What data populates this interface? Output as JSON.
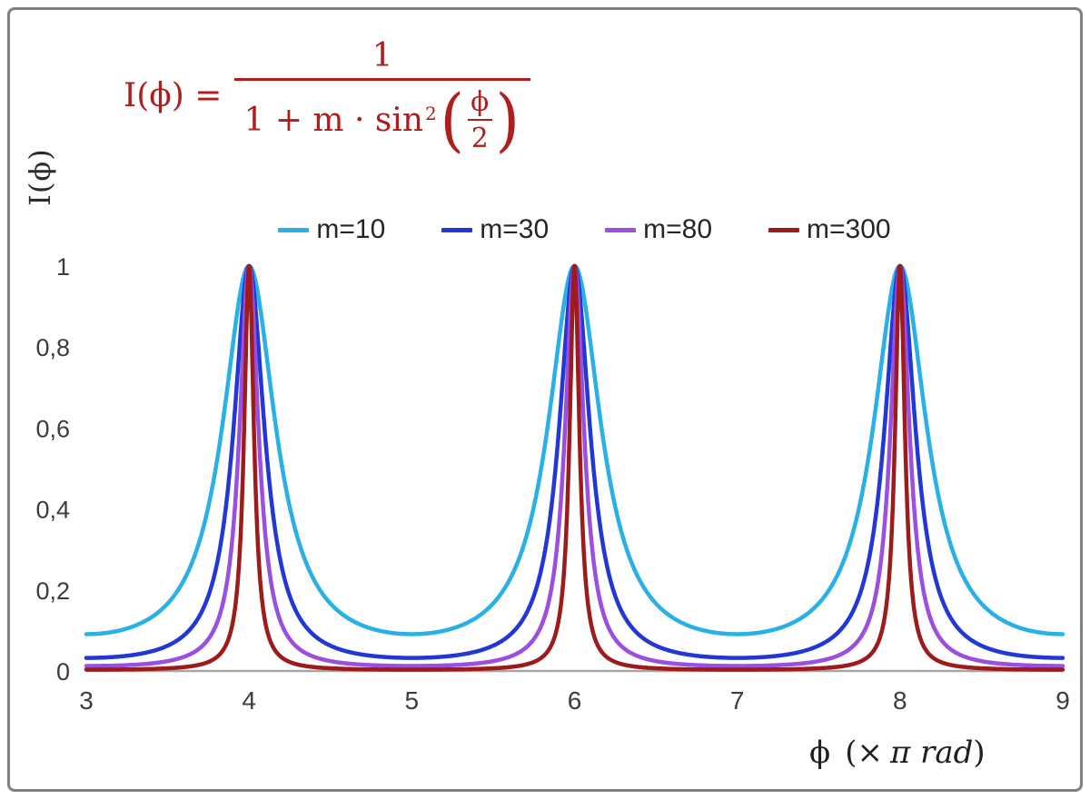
{
  "figure": {
    "border_color": "#7f7f7f",
    "background": "#ffffff"
  },
  "formula": {
    "color": "#b01d1d",
    "lhs": "I(ϕ) =",
    "numerator": "1",
    "den_prefix": "1 + m · sin",
    "den_sup": "2",
    "open_paren": "(",
    "close_paren": ")",
    "inner_numerator": "ϕ",
    "inner_denominator": "2"
  },
  "axes": {
    "y_title": "I(ϕ)",
    "x_title": {
      "phi": "ϕ",
      "open": "(×",
      "pi_rad": "π rad",
      "close": ")"
    },
    "tick_color": "#3d3d3d",
    "axis_line_color": "#a6a6a6"
  },
  "chart_data": {
    "type": "line",
    "title": "",
    "xlabel": "ϕ (× π rad)",
    "ylabel": "I(ϕ)",
    "function": "I(ϕ) = 1 / (1 + m · sin²(ϕ/2)), with ϕ expressed in units of π rad; peaks of I = 1 at ϕ = 4π, 6π, 8π; minima of 1/(1+m) at ϕ = 3π, 5π, 7π, 9π",
    "x_range": [
      3,
      9
    ],
    "y_range": [
      0,
      1
    ],
    "grid": false,
    "legend_position": "top",
    "x_ticks": [
      {
        "value": 3,
        "label": "3"
      },
      {
        "value": 4,
        "label": "4"
      },
      {
        "value": 5,
        "label": "5"
      },
      {
        "value": 6,
        "label": "6"
      },
      {
        "value": 7,
        "label": "7"
      },
      {
        "value": 8,
        "label": "8"
      },
      {
        "value": 9,
        "label": "9"
      }
    ],
    "y_ticks": [
      {
        "value": 0,
        "label": "0"
      },
      {
        "value": 0.2,
        "label": "0,2"
      },
      {
        "value": 0.4,
        "label": "0,4"
      },
      {
        "value": 0.6,
        "label": "0,6"
      },
      {
        "value": 0.8,
        "label": "0,8"
      },
      {
        "value": 1,
        "label": "1"
      }
    ],
    "series": [
      {
        "name": "m=10",
        "m": 10,
        "color": "#29b0e6",
        "min_value": 0.0909
      },
      {
        "name": "m=30",
        "m": 30,
        "color": "#2238d6",
        "min_value": 0.0323
      },
      {
        "name": "m=80",
        "m": 80,
        "color": "#9b4fe0",
        "min_value": 0.0123
      },
      {
        "name": "m=300",
        "m": 300,
        "color": "#9e1b1b",
        "min_value": 0.0033
      }
    ]
  }
}
